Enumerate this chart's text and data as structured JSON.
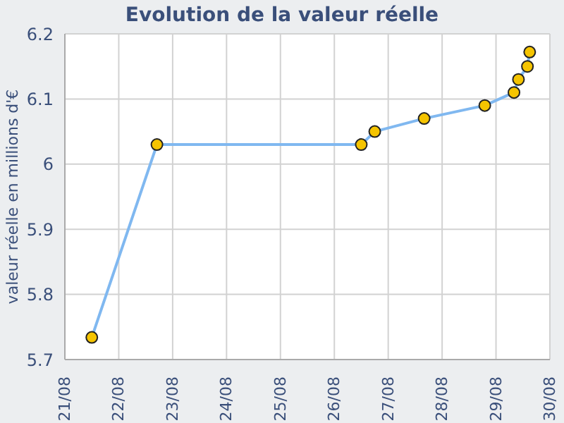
{
  "chart_data": {
    "type": "line",
    "title": "Evolution de la valeur réelle",
    "ylabel": "valeur réelle en millions d'€",
    "x": [
      "--08-21T12:00",
      "--08-22T17:00",
      "--08-26T12:00",
      "--08-26T18:00",
      "--08-27T16:00",
      "--08-28T19:00",
      "--08-29T08:00",
      "--08-29T10:00",
      "--08-29T14:00",
      "--08-29T15:00"
    ],
    "series": [
      {
        "color": "#80b8f0",
        "values": [
          5.734,
          6.03,
          6.03,
          6.05,
          6.07,
          6.09,
          6.11,
          6.13,
          6.15,
          6.172
        ]
      }
    ],
    "xlim": [
      "--08-21",
      "--08-30"
    ],
    "xticks": [
      {
        "value": "--08-21",
        "label": "21/08"
      },
      {
        "value": "--08-22",
        "label": "22/08"
      },
      {
        "value": "--08-23",
        "label": "23/08"
      },
      {
        "value": "--08-24",
        "label": "24/08"
      },
      {
        "value": "--08-25",
        "label": "25/08"
      },
      {
        "value": "--08-26",
        "label": "26/08"
      },
      {
        "value": "--08-27",
        "label": "27/08"
      },
      {
        "value": "--08-28",
        "label": "28/08"
      },
      {
        "value": "--08-29",
        "label": "29/08"
      },
      {
        "value": "--08-30",
        "label": "30/08"
      }
    ],
    "ylim": [
      5.7,
      6.2
    ],
    "yticks": [
      5.7,
      5.8,
      5.9,
      6,
      6.1,
      6.2
    ],
    "grid": true,
    "legend": false,
    "marker": "circle",
    "line_style": "solid"
  }
}
